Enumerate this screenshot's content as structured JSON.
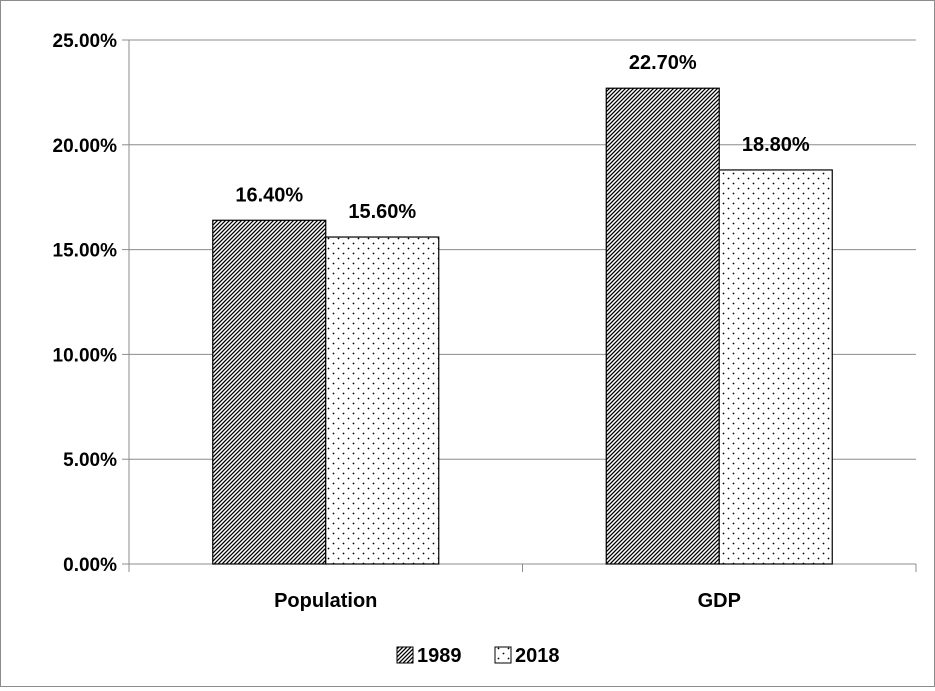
{
  "chart_data": {
    "type": "bar",
    "categories": [
      "Population",
      "GDP"
    ],
    "series": [
      {
        "name": "1989",
        "values": [
          16.4,
          22.7
        ],
        "pattern": "diagonal-hatch"
      },
      {
        "name": "2018",
        "values": [
          15.6,
          18.8
        ],
        "pattern": "dots"
      }
    ],
    "value_labels": [
      [
        "16.40%",
        "22.70%"
      ],
      [
        "15.60%",
        "18.80%"
      ]
    ],
    "y_ticks": [
      "0.00%",
      "5.00%",
      "10.00%",
      "15.00%",
      "20.00%",
      "25.00%"
    ],
    "y_tick_values": [
      0,
      5,
      10,
      15,
      20,
      25
    ],
    "ylim": [
      0,
      25
    ],
    "grid": true,
    "legend_position": "bottom",
    "title": "",
    "xlabel": "",
    "ylabel": "",
    "colors": {
      "bar_stroke": "#000000",
      "gridline": "#8c8c8c",
      "background": "#ffffff"
    }
  }
}
